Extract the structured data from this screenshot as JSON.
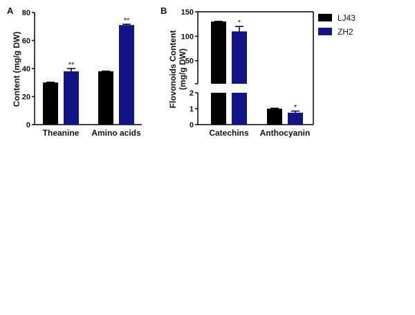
{
  "legend": [
    {
      "name": "LJ43",
      "color": "#000000"
    },
    {
      "name": "ZH2",
      "color": "#14148a"
    }
  ],
  "chart_data": [
    {
      "panel": "A",
      "type": "bar",
      "ylabel": "Content (mg/g DW)",
      "ylim": [
        0,
        80
      ],
      "yticks": [
        0,
        20,
        40,
        60,
        80
      ],
      "categories": [
        "Theanine",
        "Amino acids"
      ],
      "series": [
        {
          "name": "LJ43",
          "values": [
            30,
            38
          ],
          "errors": [
            0.3,
            0.2
          ]
        },
        {
          "name": "ZH2",
          "values": [
            38,
            71
          ],
          "errors": [
            2,
            0.6
          ]
        }
      ],
      "annotations": [
        {
          "category": "Theanine",
          "series": "ZH2",
          "text": "**"
        },
        {
          "category": "Amino acids",
          "series": "ZH2",
          "text": "**"
        }
      ]
    },
    {
      "panel": "B",
      "type": "bar",
      "ylabel": "Flovonoids Content",
      "ylabel2": "(mg/g DW)",
      "axis_break": true,
      "ylim_lower": [
        0,
        2
      ],
      "ylim_upper": [
        3,
        150
      ],
      "yticks": [
        0,
        1,
        2,
        50,
        100,
        150
      ],
      "categories": [
        "Catechins",
        "Anthocyanin"
      ],
      "series": [
        {
          "name": "LJ43",
          "values": [
            130,
            1.0
          ],
          "errors": [
            0.5,
            0.03
          ]
        },
        {
          "name": "ZH2",
          "values": [
            110,
            0.75
          ],
          "errors": [
            10,
            0.1
          ]
        }
      ],
      "annotations": [
        {
          "category": "Catechins",
          "series": "ZH2",
          "text": "*"
        },
        {
          "category": "Anthocyanin",
          "series": "ZH2",
          "text": "*"
        }
      ]
    }
  ]
}
